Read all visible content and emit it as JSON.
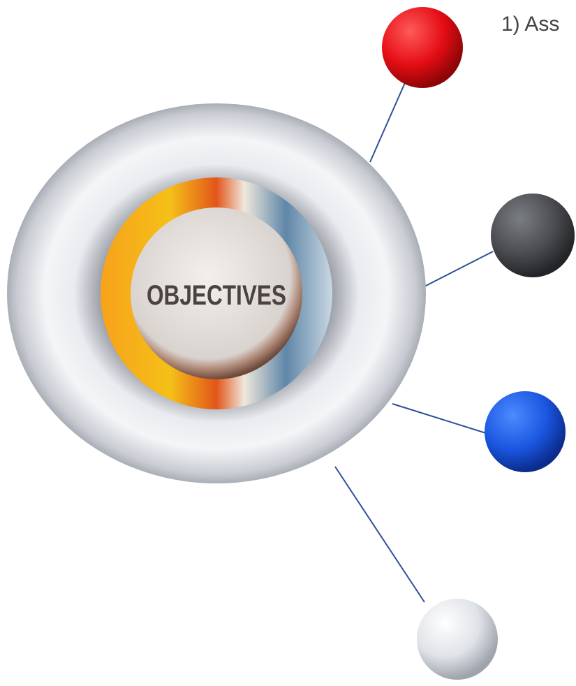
{
  "header_text": "1) Ass",
  "center": {
    "label": "OBJECTIVES"
  }
}
